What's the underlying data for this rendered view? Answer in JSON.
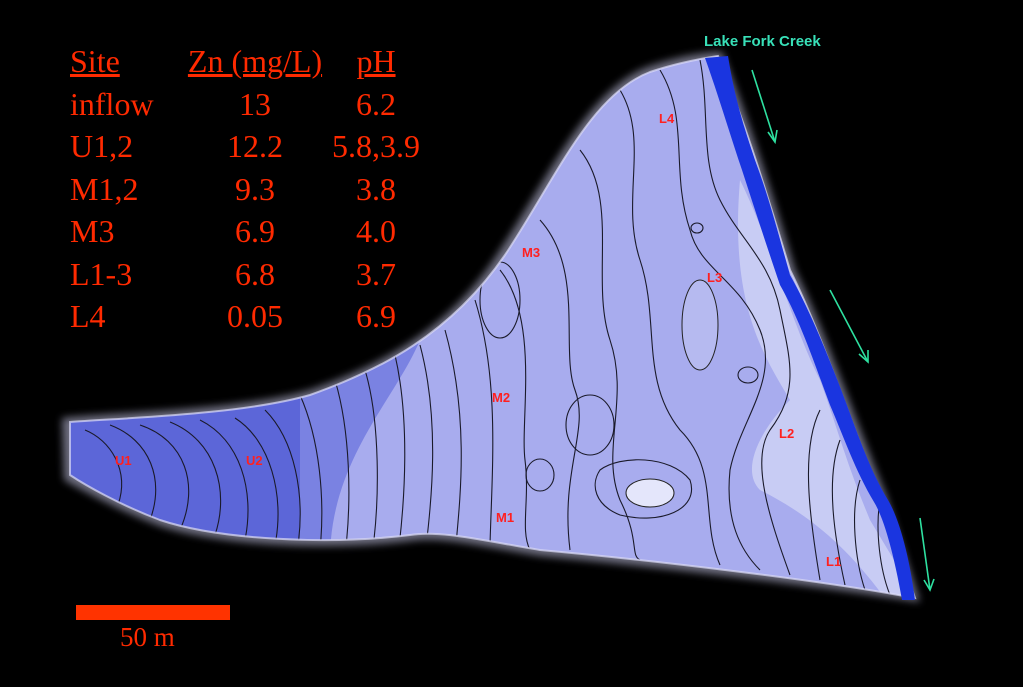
{
  "table": {
    "headers": [
      "Site",
      "Zn (mg/L)",
      "pH"
    ],
    "rows": [
      [
        "inflow",
        "13",
        "6.2"
      ],
      [
        "U1,2",
        "12.2",
        "5.8,3.9"
      ],
      [
        "M1,2",
        "9.3",
        "3.8"
      ],
      [
        "M3",
        "6.9",
        "4.0"
      ],
      [
        "L1-3",
        "6.8",
        "3.7"
      ],
      [
        "L4",
        "0.05",
        "6.9"
      ]
    ]
  },
  "map": {
    "creek_label": "Lake Fork Creek",
    "sites": [
      "U1",
      "U2",
      "M1",
      "M2",
      "M3",
      "L1",
      "L2",
      "L3",
      "L4"
    ]
  },
  "scale": {
    "label": "50 m"
  },
  "colors": {
    "text": "#ff2a00",
    "site_label": "#ff2020",
    "creek_label": "#38e0b8",
    "creek_water": "#1a35e0",
    "scale_bar": "#ff3300"
  }
}
